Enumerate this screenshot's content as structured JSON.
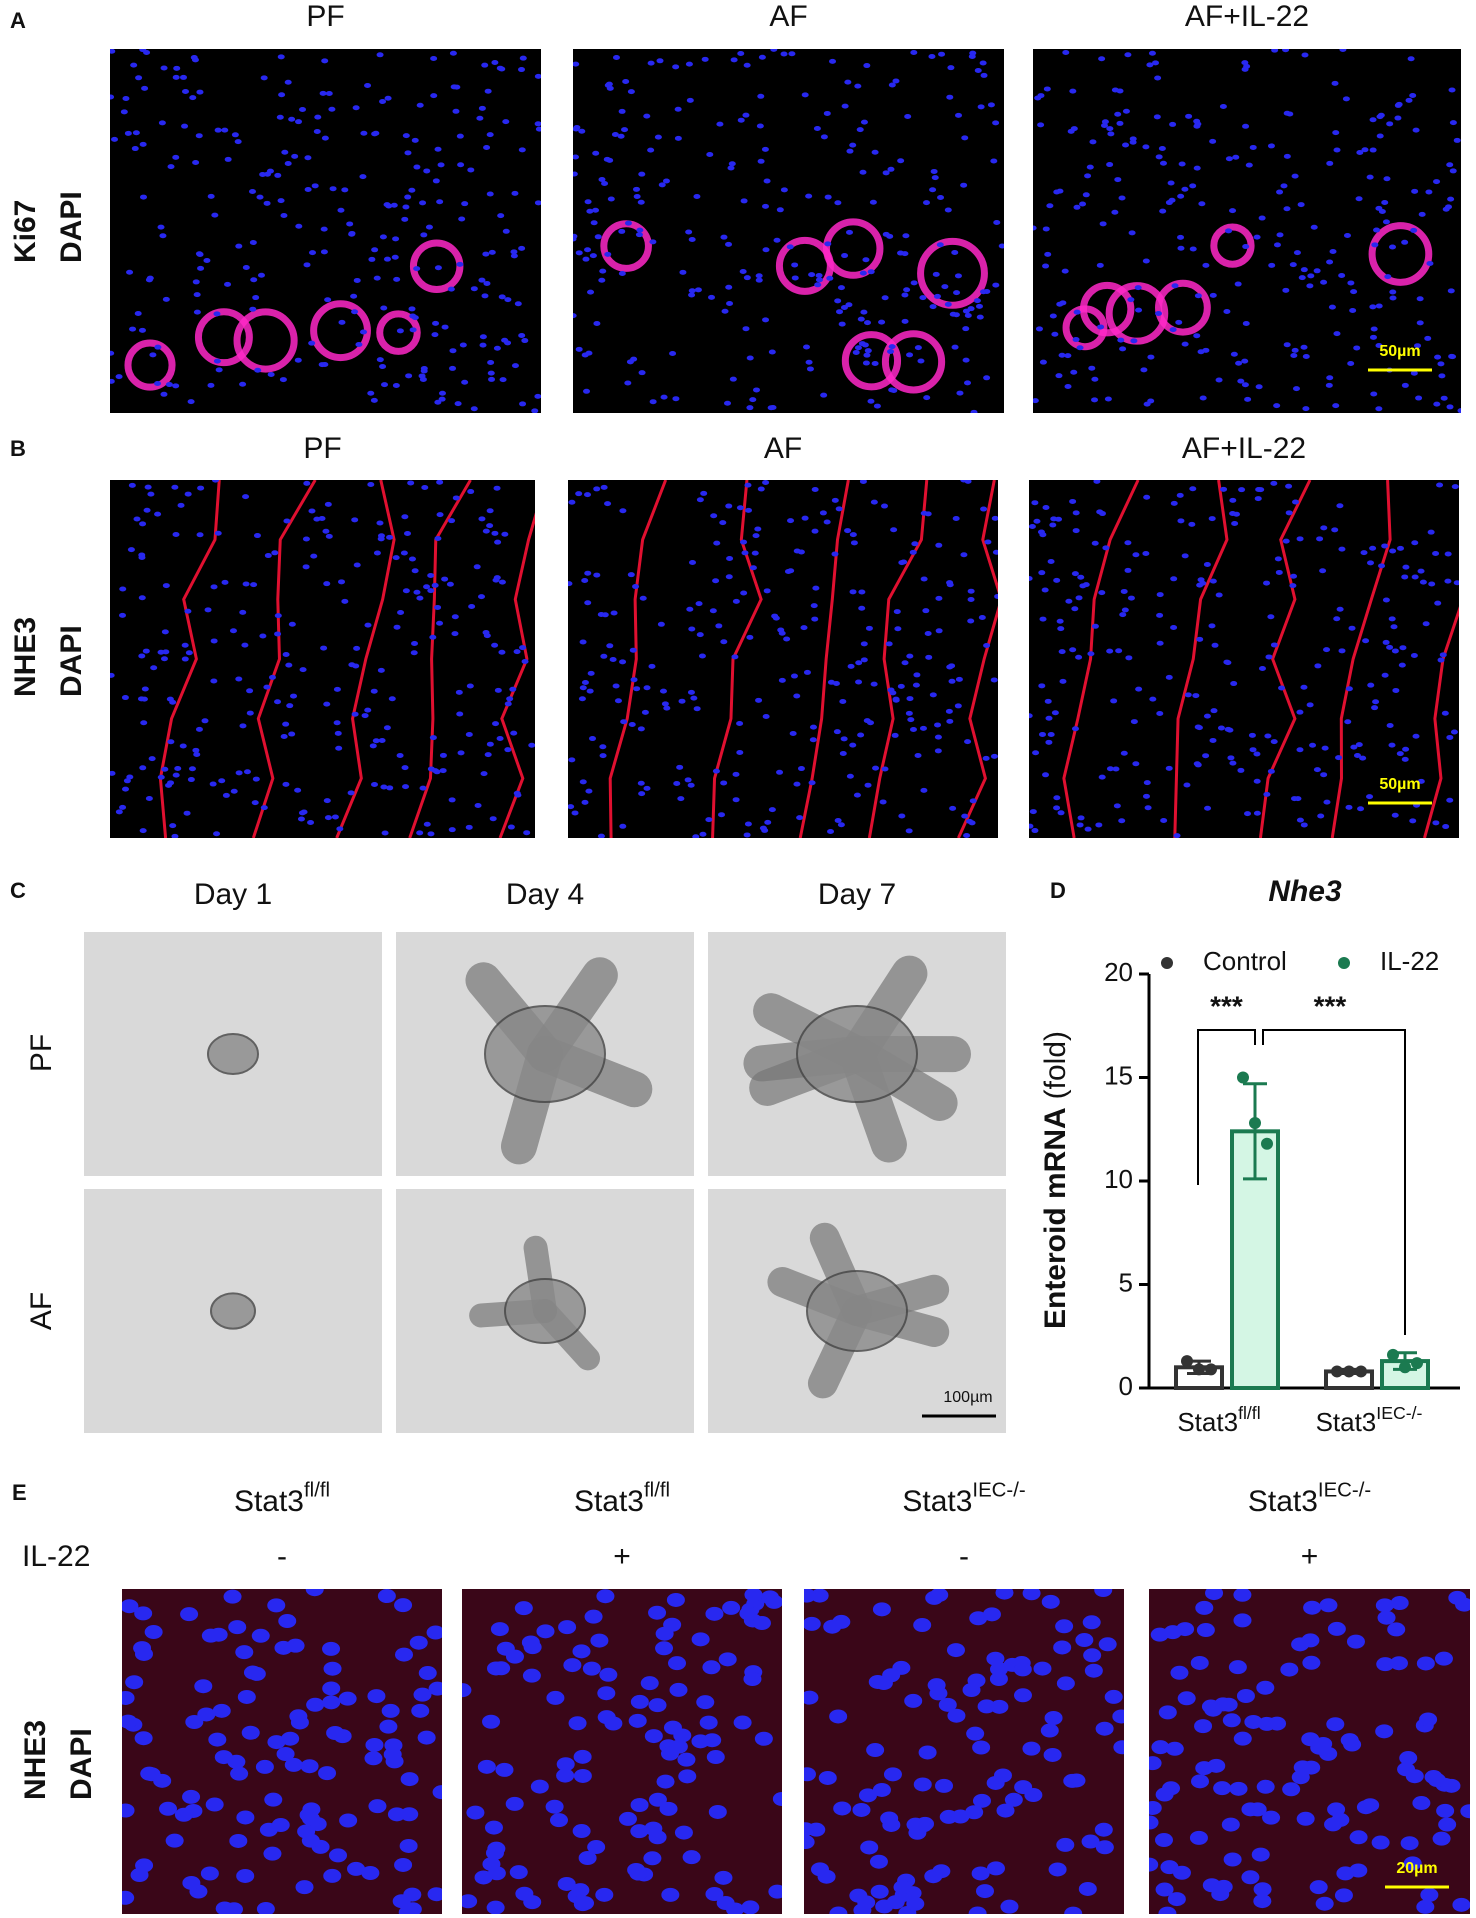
{
  "panel_a": {
    "label": "A",
    "columns": [
      "PF",
      "AF",
      "AF+IL-22"
    ],
    "stain": [
      "Ki67",
      "DAPI"
    ],
    "scale_bar": "50µm"
  },
  "panel_b": {
    "label": "B",
    "columns": [
      "PF",
      "AF",
      "AF+IL-22"
    ],
    "stain": [
      "NHE3",
      "DAPI"
    ],
    "scale_bar": "50µm"
  },
  "panel_c": {
    "label": "C",
    "columns": [
      "Day 1",
      "Day 4",
      "Day 7"
    ],
    "rows": [
      "PF",
      "AF"
    ],
    "scale_bar": "100µm"
  },
  "chart_data": {
    "type": "bar",
    "label": "D",
    "title": "Nhe3",
    "y_label": "Enteroid mRNA",
    "y_label_unit": "(fold)",
    "categories": [
      {
        "base": "Stat3",
        "sup": "fl/fl"
      },
      {
        "base": "Stat3",
        "sup": "IEC-/-"
      }
    ],
    "series": [
      {
        "name": "Control",
        "color": "#333333",
        "fill": "#ffffff",
        "values": [
          1.0,
          0.8
        ],
        "errors": [
          0.3,
          0.1
        ],
        "points": [
          [
            1.3,
            0.9,
            0.9
          ],
          [
            0.8,
            0.8,
            0.8
          ]
        ]
      },
      {
        "name": "IL-22",
        "color": "#1b7a50",
        "fill": "#d4f6e4",
        "values": [
          12.4,
          1.3
        ],
        "errors": [
          2.3,
          0.4
        ],
        "points": [
          [
            15.0,
            12.8,
            11.8
          ],
          [
            1.6,
            1.0,
            1.2
          ]
        ]
      }
    ],
    "ylim": [
      0,
      20
    ],
    "yticks": [
      0,
      5,
      10,
      15,
      20
    ],
    "significance": [
      "***",
      "***"
    ]
  },
  "panel_e": {
    "label": "E",
    "columns": [
      {
        "base": "Stat3",
        "sup": "fl/fl"
      },
      {
        "base": "Stat3",
        "sup": "fl/fl"
      },
      {
        "base": "Stat3",
        "sup": "IEC-/-"
      },
      {
        "base": "Stat3",
        "sup": "IEC-/-"
      }
    ],
    "row_label": "IL-22",
    "treatment": [
      "-",
      "+",
      "-",
      "+"
    ],
    "stain": [
      "NHE3",
      "DAPI"
    ],
    "scale_bar": "20µm"
  }
}
